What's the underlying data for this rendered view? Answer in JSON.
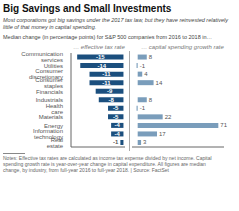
{
  "title": "Big Savings and Small Investments",
  "subtitle": "Most corporations got big savings under the 2017 tax law, but they have reinvested relatively\nlittle of that money in capital spending.",
  "annotations": [
    "Median change (in percentage points) for S&P 500 companies from 2016 to 2018 in…",
    "Notes: Effective tax rates are calculated as income tax expense divided by net income. Capital\nspending growth rate is year-over-year change in capital expenditure. All figures are median\nchange, by industry, from full-year 2016 to full-year 2018. | Source: FactSet"
  ],
  "chart_data": [
    {
      "type": "bar",
      "orientation": "horizontal",
      "title": "… effective tax rate",
      "categories": [
        "Communication services",
        "Utilities",
        "Consumer discretionary",
        "Consumer staples",
        "Financials",
        "Industrials",
        "Health care",
        "Materials",
        "Energy",
        "Information technology",
        "Real estate"
      ],
      "values": [
        -15,
        -14,
        -11,
        -11,
        -9,
        -8,
        -5,
        -5,
        -4,
        -4,
        -1
      ],
      "color": "#1b4f7e",
      "xlim": [
        -17,
        0.5
      ],
      "data_labels": true,
      "tick_labels": "y"
    },
    {
      "type": "bar",
      "orientation": "horizontal",
      "title": "… capital spending growth rate",
      "categories": [
        "Communication services",
        "Utilities",
        "Consumer discretionary",
        "Consumer staples",
        "Financials",
        "Industrials",
        "Health care",
        "Materials",
        "Energy",
        "Information technology",
        "Real estate"
      ],
      "values": [
        8,
        -1,
        4,
        14,
        0,
        8,
        -1,
        22,
        71,
        17,
        3
      ],
      "color": "#7a9dbb",
      "xlim": [
        -5,
        76
      ],
      "data_labels": true,
      "tick_labels": false
    }
  ]
}
